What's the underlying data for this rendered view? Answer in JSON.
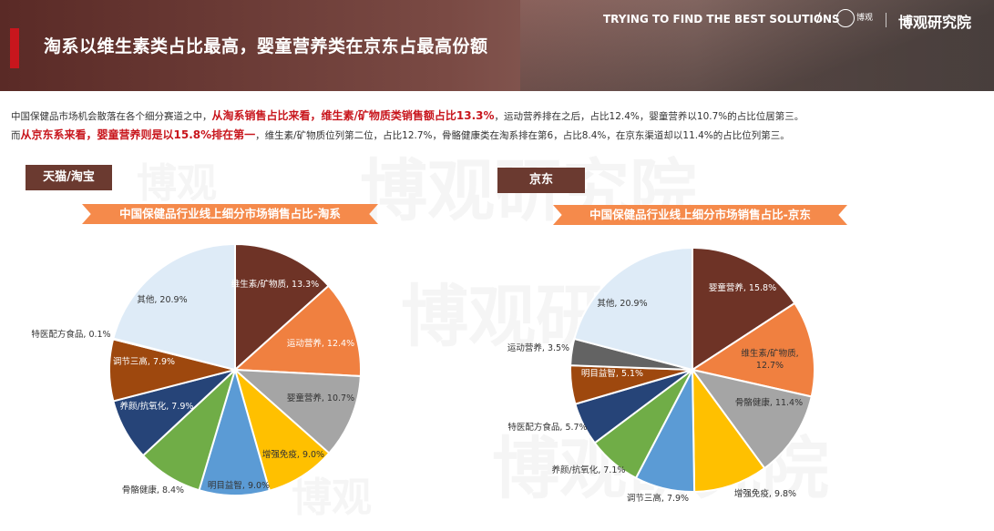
{
  "header": {
    "title": "淘系以维生素类占比最高，婴童营养类在京东占最高份额",
    "slogan": "TRYING TO FIND THE BEST SOLUTIONS",
    "slash": "/",
    "logo_text": "博观",
    "brand": "博观研究院"
  },
  "paragraph": {
    "line1": [
      {
        "t": "中国保健品市场机会散落在各个细分赛道之中，",
        "hl": false
      },
      {
        "t": "从淘系销售占比来看，维生素/矿物质类销售额占比13.3%",
        "hl": true
      },
      {
        "t": "，运动营养排在之后，占比12.4%，婴童营养以10.7%的占比位居第三。",
        "hl": false
      }
    ],
    "line2": [
      {
        "t": "而",
        "hl": false
      },
      {
        "t": "从京东系来看，婴童营养则是以15.8%排在第一",
        "hl": true
      },
      {
        "t": "，维生素/矿物质位列第二位，占比12.7%，骨骼健康类在淘系排在第6，占比8.4%，在京东渠道却以11.4%的占比位列第三。",
        "hl": false
      }
    ]
  },
  "watermark": "博观研究院",
  "watermark_short": "博观",
  "tags": {
    "left": "天猫/淘宝",
    "right": "京东"
  },
  "chart_data": [
    {
      "type": "pie",
      "title": "中国保健品行业线上细分市场销售占比-淘系",
      "slices": [
        {
          "label": "维生素/矿物质, 13.3%",
          "value": 13.3,
          "color": "#6e3326"
        },
        {
          "label": "运动营养, 12.4%",
          "value": 12.4,
          "color": "#f08040"
        },
        {
          "label": "婴童营养, 10.7%",
          "value": 10.7,
          "color": "#a5a5a5"
        },
        {
          "label": "增强免疫, 9.0%",
          "value": 9.0,
          "color": "#ffc000"
        },
        {
          "label": "明目益智, 9.0%",
          "value": 9.0,
          "color": "#5b9bd5"
        },
        {
          "label": "骨骼健康, 8.4%",
          "value": 8.4,
          "color": "#70ad47"
        },
        {
          "label": "养颜/抗氧化, 7.9%",
          "value": 7.9,
          "color": "#264478"
        },
        {
          "label": "调节三高, 7.9%",
          "value": 7.9,
          "color": "#9e480e"
        },
        {
          "label": "特医配方食品, 0.1%",
          "value": 0.1,
          "color": "#636363"
        },
        {
          "label": "其他, 20.9%",
          "value": 20.9,
          "color": "#deebf7"
        }
      ]
    },
    {
      "type": "pie",
      "title": "中国保健品行业线上细分市场销售占比-京东",
      "slices": [
        {
          "label": "婴童营养, 15.8%",
          "value": 15.8,
          "color": "#6e3326"
        },
        {
          "label": "维生素/矿物质, 12.7%",
          "value": 12.7,
          "color": "#f08040"
        },
        {
          "label": "骨骼健康, 11.4%",
          "value": 11.4,
          "color": "#a5a5a5"
        },
        {
          "label": "增强免疫, 9.8%",
          "value": 9.8,
          "color": "#ffc000"
        },
        {
          "label": "调节三高, 7.9%",
          "value": 7.9,
          "color": "#5b9bd5"
        },
        {
          "label": "养颜/抗氧化, 7.1%",
          "value": 7.1,
          "color": "#70ad47"
        },
        {
          "label": "特医配方食品, 5.7%",
          "value": 5.7,
          "color": "#264478"
        },
        {
          "label": "明目益智, 5.1%",
          "value": 5.1,
          "color": "#9e480e"
        },
        {
          "label": "运动营养, 3.5%",
          "value": 3.5,
          "color": "#636363"
        },
        {
          "label": "其他, 20.9%",
          "value": 20.9,
          "color": "#deebf7"
        }
      ]
    }
  ]
}
